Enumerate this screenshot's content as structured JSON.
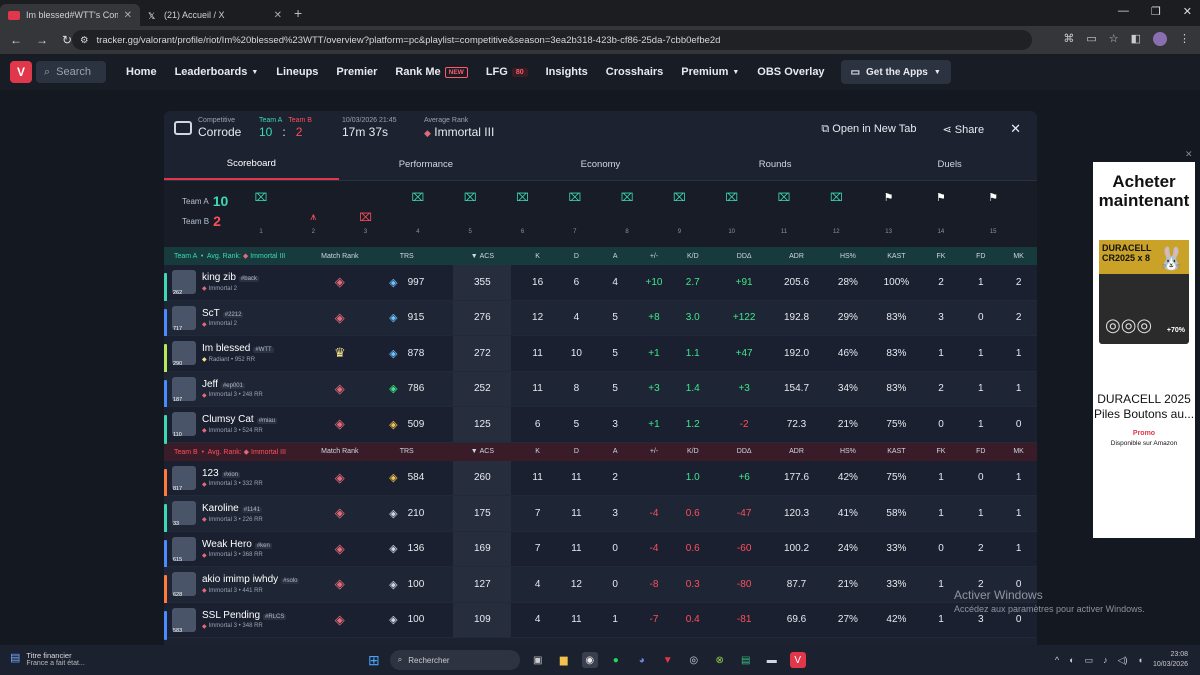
{
  "browser": {
    "tabs": [
      {
        "label": "Im blessed#WTT's Competitive",
        "favicon_color": "#e0374a",
        "active": true
      },
      {
        "label": "(21) Accueil / X",
        "favicon_color": "#000000",
        "active": false
      }
    ],
    "url": "tracker.gg/valorant/profile/riot/Im%20blessed%23WTT/overview?platform=pc&playlist=competitive&season=3ea2b318-423b-cf86-25da-7cbb0efbe2d"
  },
  "sitenav": {
    "search": "Search",
    "items": [
      "Home",
      "Leaderboards",
      "Lineups",
      "Premier",
      "Rank Me",
      "LFG",
      "Insights",
      "Crosshairs",
      "Premium",
      "OBS Overlay"
    ],
    "rankme_badge": "NEW",
    "lfg_badge": "80",
    "get_apps": "Get the Apps"
  },
  "match": {
    "mode": "Competitive",
    "map": "Corrode",
    "team_a_label": "Team A",
    "team_b_label": "Team B",
    "team_a_score": "10",
    "team_b_score": "2",
    "score_sep": ":",
    "date": "10/03/2026 21:45",
    "duration": "17m 37s",
    "avg_rank_label": "Average Rank",
    "avg_rank": "Immortal III",
    "open_new_tab": "Open in New Tab",
    "share": "Share"
  },
  "subtabs": [
    "Scoreboard",
    "Performance",
    "Economy",
    "Rounds",
    "Duels"
  ],
  "rounds": {
    "team_a_label": "Team A",
    "team_b_label": "Team B",
    "team_a_score": "10",
    "team_b_score": "2",
    "list": [
      {
        "n": "1",
        "winner": "A",
        "icon": "defuse"
      },
      {
        "n": "2",
        "winner": "B",
        "icon": "spike"
      },
      {
        "n": "3",
        "winner": "B",
        "icon": "elim"
      },
      {
        "n": "4",
        "winner": "A",
        "icon": "elim"
      },
      {
        "n": "5",
        "winner": "A",
        "icon": "elim"
      },
      {
        "n": "6",
        "winner": "A",
        "icon": "elim"
      },
      {
        "n": "7",
        "winner": "A",
        "icon": "elim"
      },
      {
        "n": "8",
        "winner": "A",
        "icon": "elim"
      },
      {
        "n": "9",
        "winner": "A",
        "icon": "elim"
      },
      {
        "n": "10",
        "winner": "A",
        "icon": "elim"
      },
      {
        "n": "11",
        "winner": "A",
        "icon": "elim"
      },
      {
        "n": "12",
        "winner": "A",
        "icon": "elim"
      },
      {
        "n": "13",
        "winner": "",
        "icon": "flag"
      },
      {
        "n": "14",
        "winner": "",
        "icon": "flag"
      },
      {
        "n": "15",
        "winner": "",
        "icon": "flag"
      }
    ]
  },
  "table": {
    "columns": [
      "Match Rank",
      "TRS",
      "ACS",
      "K",
      "D",
      "A",
      "+/-",
      "K/D",
      "DDΔ",
      "ADR",
      "HS%",
      "KAST",
      "FK",
      "FD",
      "MK"
    ],
    "team_a_header": {
      "team": "Team A",
      "avg": "Avg. Rank:",
      "rank": "Immortal III"
    },
    "team_b_header": {
      "team": "Team B",
      "avg": "Avg. Rank:",
      "rank": "Immortal III"
    },
    "team_a": [
      {
        "name": "king zib",
        "tag": "#back",
        "sub": "Immortal 2",
        "level": "262",
        "bar": "#3dd9b5",
        "trs": "997",
        "acs": "355",
        "k": "16",
        "d": "6",
        "a": "4",
        "pm": "+10",
        "kd": "2.7",
        "dd": "+91",
        "adr": "205.6",
        "hs": "28%",
        "kast": "100%",
        "fk": "2",
        "fd": "1",
        "mk": "2"
      },
      {
        "name": "ScT",
        "tag": "#2212",
        "sub": "Immortal 2",
        "level": "717",
        "bar": "#4a8cff",
        "trs": "915",
        "acs": "276",
        "k": "12",
        "d": "4",
        "a": "5",
        "pm": "+8",
        "kd": "3.0",
        "dd": "+122",
        "adr": "192.8",
        "hs": "29%",
        "kast": "83%",
        "fk": "3",
        "fd": "0",
        "mk": "2"
      },
      {
        "name": "Im blessed",
        "tag": "#WTT",
        "sub": "Radiant • 952 RR",
        "level": "290",
        "bar": "#b9e85c",
        "trs": "878",
        "acs": "272",
        "k": "11",
        "d": "10",
        "a": "5",
        "pm": "+1",
        "kd": "1.1",
        "dd": "+47",
        "adr": "192.0",
        "hs": "46%",
        "kast": "83%",
        "fk": "1",
        "fd": "1",
        "mk": "1"
      },
      {
        "name": "Jeff",
        "tag": "#ep001",
        "sub": "Immortal 3 • 248 RR",
        "level": "187",
        "bar": "#4a8cff",
        "trs": "786",
        "acs": "252",
        "k": "11",
        "d": "8",
        "a": "5",
        "pm": "+3",
        "kd": "1.4",
        "dd": "+3",
        "adr": "154.7",
        "hs": "34%",
        "kast": "83%",
        "fk": "2",
        "fd": "1",
        "mk": "1"
      },
      {
        "name": "Clumsy Cat",
        "tag": "#miau",
        "sub": "Immortal 3 • 524 RR",
        "level": "110",
        "bar": "#3dd9b5",
        "trs": "509",
        "acs": "125",
        "k": "6",
        "d": "5",
        "a": "3",
        "pm": "+1",
        "kd": "1.2",
        "dd": "-2",
        "adr": "72.3",
        "hs": "21%",
        "kast": "75%",
        "fk": "0",
        "fd": "1",
        "mk": "0"
      }
    ],
    "team_b": [
      {
        "name": "123",
        "tag": "#xion",
        "sub": "Immortal 3 • 332 RR",
        "level": "817",
        "bar": "#ff7a3c",
        "trs": "584",
        "acs": "260",
        "k": "11",
        "d": "11",
        "a": "2",
        "pm": "",
        "kd": "1.0",
        "dd": "+6",
        "adr": "177.6",
        "hs": "42%",
        "kast": "75%",
        "fk": "1",
        "fd": "0",
        "mk": "1"
      },
      {
        "name": "Karoline",
        "tag": "#1141",
        "sub": "Immortal 3 • 226 RR",
        "level": "33",
        "bar": "#3dd9b5",
        "trs": "210",
        "acs": "175",
        "k": "7",
        "d": "11",
        "a": "3",
        "pm": "-4",
        "kd": "0.6",
        "dd": "-47",
        "adr": "120.3",
        "hs": "41%",
        "kast": "58%",
        "fk": "1",
        "fd": "1",
        "mk": "1"
      },
      {
        "name": "Weak Hero",
        "tag": "#ken",
        "sub": "Immortal 3 • 368 RR",
        "level": "615",
        "bar": "#4a8cff",
        "trs": "136",
        "acs": "169",
        "k": "7",
        "d": "11",
        "a": "0",
        "pm": "-4",
        "kd": "0.6",
        "dd": "-60",
        "adr": "100.2",
        "hs": "24%",
        "kast": "33%",
        "fk": "0",
        "fd": "2",
        "mk": "1"
      },
      {
        "name": "akio imimp iwhdy",
        "tag": "#solo",
        "sub": "Immortal 3 • 441 RR",
        "level": "628",
        "bar": "#ff7a3c",
        "trs": "100",
        "acs": "127",
        "k": "4",
        "d": "12",
        "a": "0",
        "pm": "-8",
        "kd": "0.3",
        "dd": "-80",
        "adr": "87.7",
        "hs": "21%",
        "kast": "33%",
        "fk": "1",
        "fd": "2",
        "mk": "0"
      },
      {
        "name": "SSL Pending",
        "tag": "#RLCS",
        "sub": "Immortal 3 • 348 RR",
        "level": "583",
        "bar": "#4a8cff",
        "trs": "100",
        "acs": "109",
        "k": "4",
        "d": "11",
        "a": "1",
        "pm": "-7",
        "kd": "0.4",
        "dd": "-81",
        "adr": "69.6",
        "hs": "27%",
        "kast": "42%",
        "fk": "1",
        "fd": "3",
        "mk": "0"
      }
    ]
  },
  "ad": {
    "title": "Acheter maintenant",
    "product_top": "DURACELL CR2025 x 8",
    "extra": "+70%",
    "name": "DURACELL 2025 Piles Boutons au...",
    "promo": "Promo",
    "avail": "Disponible sur Amazon"
  },
  "windows": {
    "activate": "Activer Windows",
    "activate_sub": "Accédez aux paramètres pour activer Windows."
  },
  "taskbar": {
    "weather_title": "Titre financier",
    "weather_sub": "France a fait état...",
    "search": "Rechercher",
    "time": "23:08",
    "date": "10/03/2026"
  }
}
